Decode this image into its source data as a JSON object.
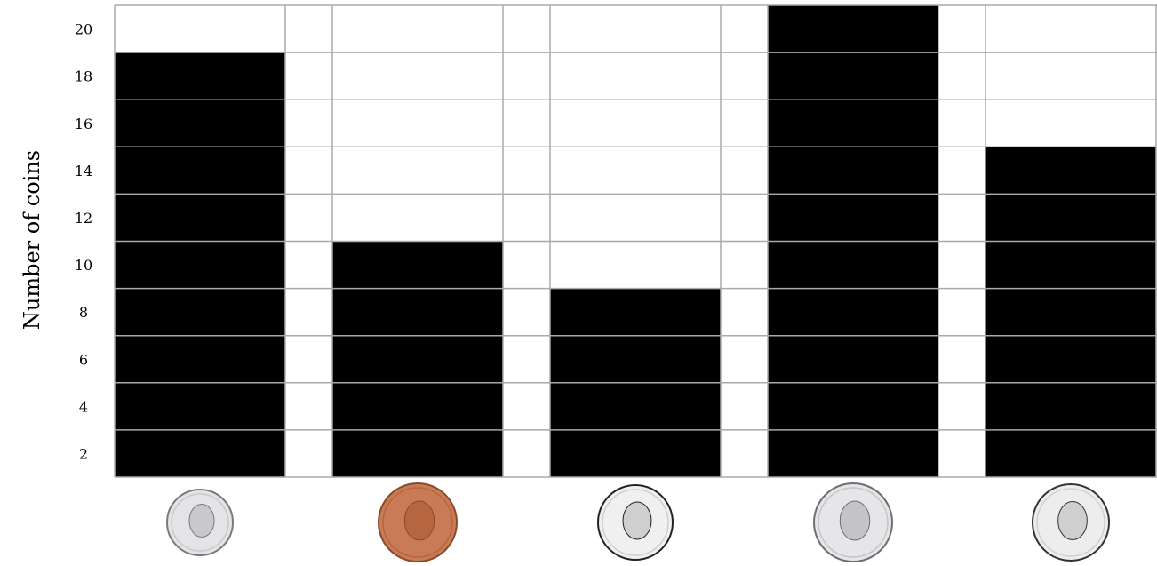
{
  "chart_data": {
    "type": "bar",
    "categories": [
      "dime",
      "penny",
      "nickel",
      "quarter",
      "half-dollar"
    ],
    "values": [
      19,
      11,
      9,
      21,
      15
    ],
    "ylabel": "Number of coins",
    "xlabel": "",
    "title": "",
    "ylim": [
      1,
      21
    ],
    "yticks": [
      2,
      4,
      6,
      8,
      10,
      12,
      14,
      16,
      18,
      20
    ],
    "grid": true,
    "bar_color": "#000000",
    "grid_color": "#aaaaaa",
    "x_tick_icons": [
      "dime-coin-icon",
      "penny-coin-icon",
      "nickel-coin-icon",
      "quarter-coin-icon",
      "half-dollar-coin-icon"
    ]
  }
}
